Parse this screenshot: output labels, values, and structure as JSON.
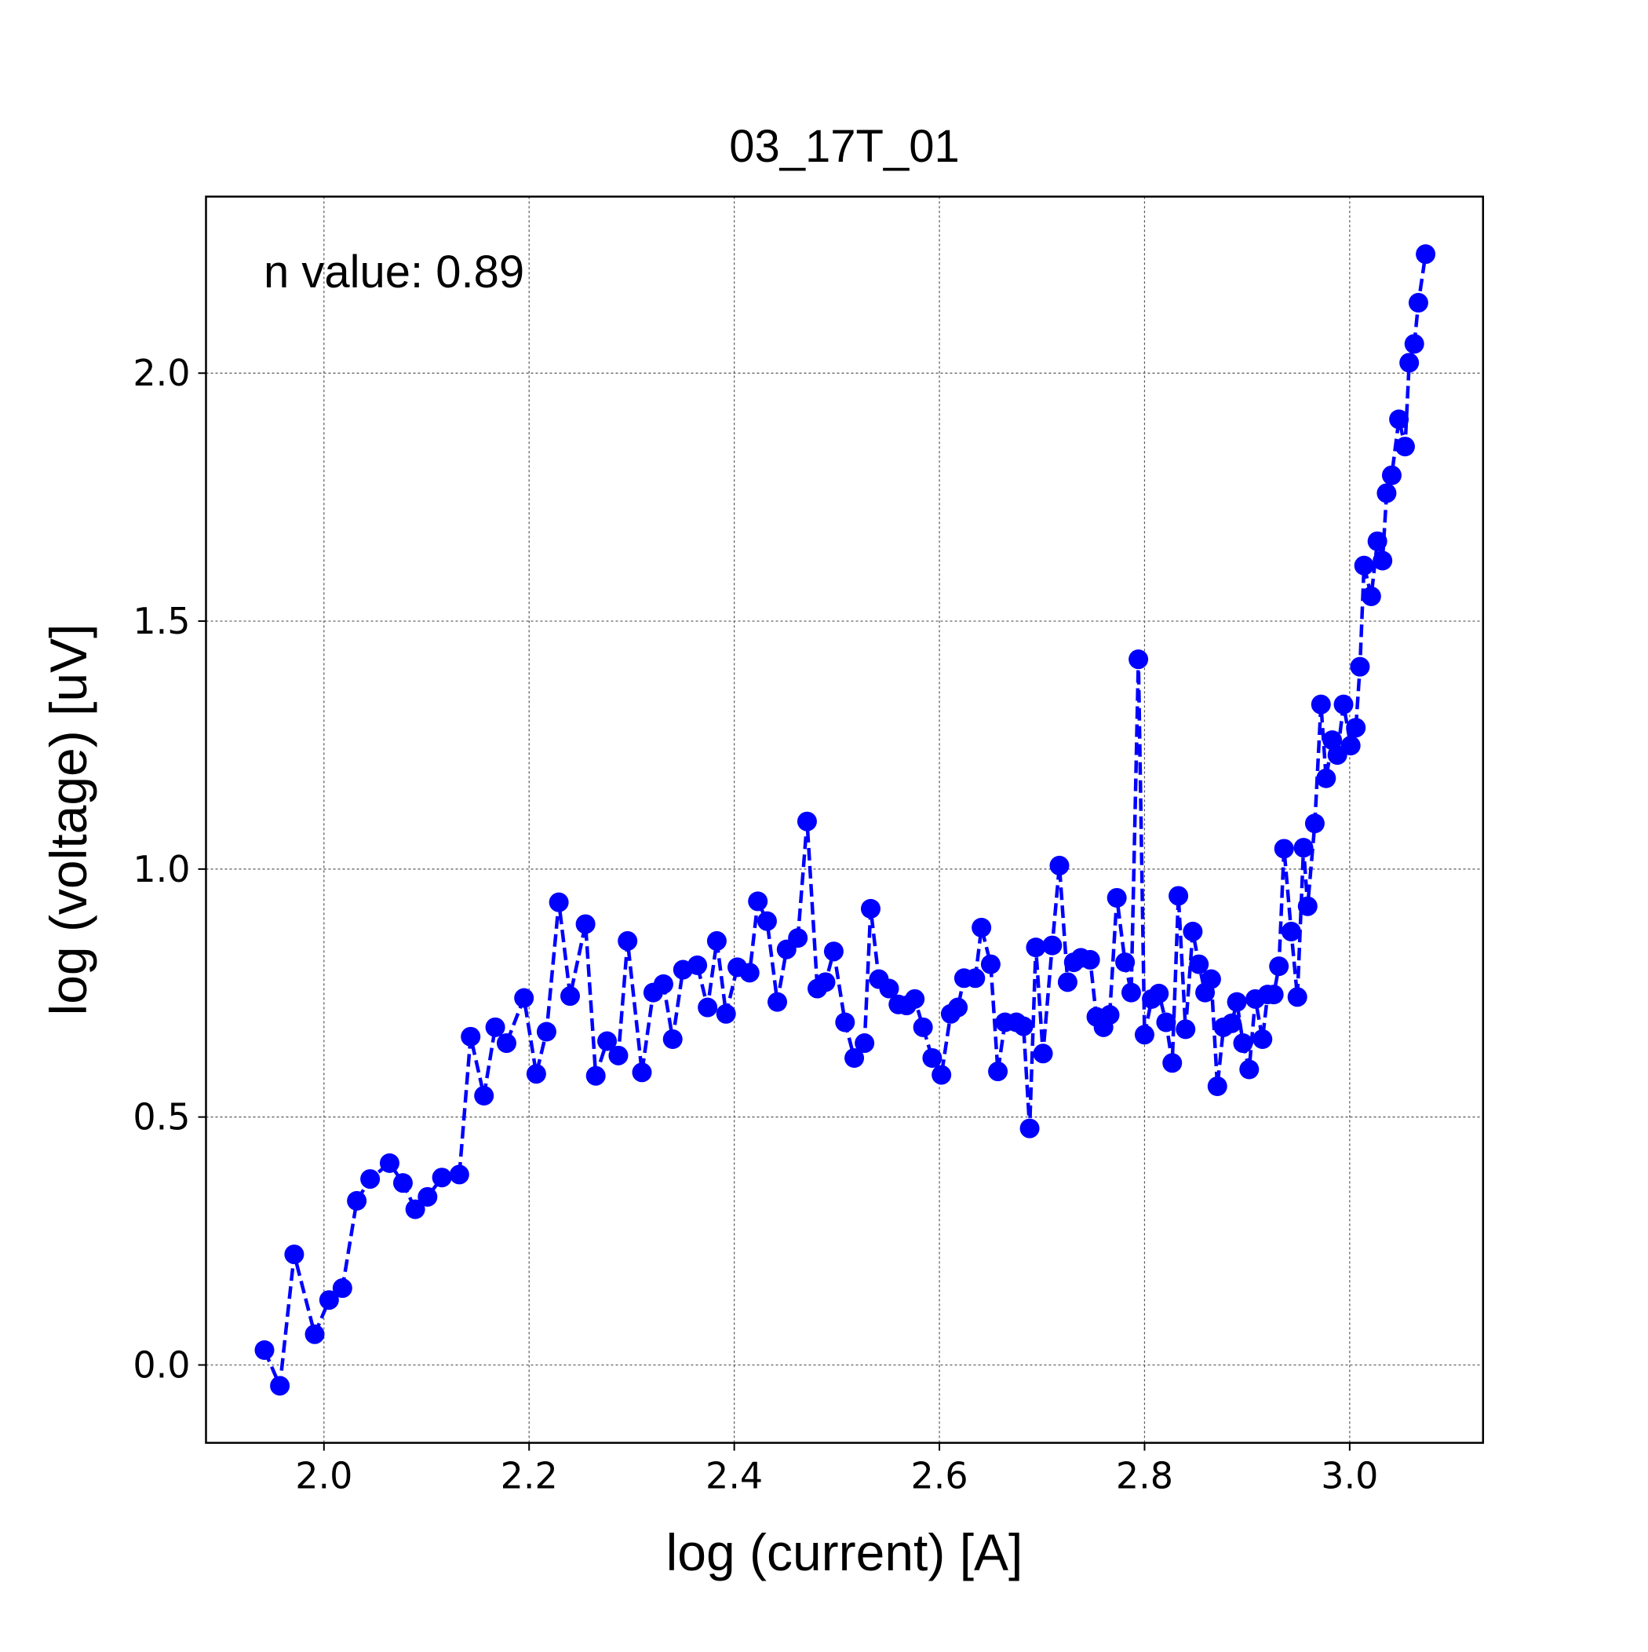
{
  "chart_data": {
    "type": "line",
    "title": "03_17T_01",
    "x_label": "log (current) [A]",
    "y_label": "log (voltage) [uV]",
    "annotation": "n value: 0.89",
    "xlim": [
      1.885,
      3.13
    ],
    "ylim": [
      -0.157,
      2.356
    ],
    "xticks": [
      {
        "value": 2.0,
        "label": "2.0"
      },
      2.2,
      2.4,
      2.6,
      2.8,
      {
        "value": 3.0,
        "label": "3.0"
      }
    ],
    "yticks": [
      {
        "value": 0.0,
        "label": "0.0"
      },
      0.5,
      {
        "value": 1.0,
        "label": "1.0"
      },
      1.5,
      {
        "value": 2.0,
        "label": "2.0"
      }
    ],
    "grid": true,
    "line_style": "dashed",
    "marker": "circle",
    "series": [
      {
        "color": "#0000ff",
        "x": [
          1.942,
          1.957,
          1.971,
          1.991,
          2.005,
          2.018,
          2.032,
          2.045,
          2.064,
          2.077,
          2.089,
          2.101,
          2.115,
          2.132,
          2.143,
          2.156,
          2.167,
          2.178,
          2.195,
          2.207,
          2.217,
          2.229,
          2.24,
          2.255,
          2.265,
          2.276,
          2.287,
          2.296,
          2.31,
          2.321,
          2.331,
          2.34,
          2.35,
          2.364,
          2.374,
          2.383,
          2.392,
          2.403,
          2.415,
          2.423,
          2.432,
          2.442,
          2.451,
          2.462,
          2.471,
          2.481,
          2.489,
          2.497,
          2.508,
          2.517,
          2.527,
          2.533,
          2.541,
          2.551,
          2.56,
          2.568,
          2.576,
          2.584,
          2.593,
          2.602,
          2.611,
          2.618,
          2.624,
          2.635,
          2.641,
          2.65,
          2.657,
          2.664,
          2.675,
          2.682,
          2.688,
          2.694,
          2.701,
          2.71,
          2.717,
          2.725,
          2.731,
          2.738,
          2.747,
          2.753,
          2.76,
          2.766,
          2.773,
          2.781,
          2.787,
          2.794,
          2.8,
          2.807,
          2.814,
          2.821,
          2.827,
          2.833,
          2.84,
          2.847,
          2.853,
          2.859,
          2.865,
          2.871,
          2.877,
          2.885,
          2.89,
          2.896,
          2.902,
          2.908,
          2.915,
          2.92,
          2.926,
          2.931,
          2.936,
          2.943,
          2.949,
          2.955,
          2.959,
          2.966,
          2.972,
          2.977,
          2.983,
          2.988,
          2.994,
          3.001,
          3.006,
          3.01,
          3.014,
          3.021,
          3.027,
          3.032,
          3.036,
          3.041,
          3.048,
          3.054,
          3.058,
          3.063,
          3.067,
          3.074
        ],
        "values": [
          0.03,
          -0.042,
          0.223,
          0.062,
          0.131,
          0.155,
          0.331,
          0.375,
          0.407,
          0.367,
          0.314,
          0.339,
          0.378,
          0.384,
          0.662,
          0.543,
          0.681,
          0.649,
          0.74,
          0.587,
          0.672,
          0.933,
          0.744,
          0.889,
          0.583,
          0.653,
          0.624,
          0.855,
          0.59,
          0.751,
          0.768,
          0.657,
          0.797,
          0.806,
          0.721,
          0.855,
          0.708,
          0.802,
          0.791,
          0.935,
          0.895,
          0.732,
          0.838,
          0.861,
          1.096,
          0.759,
          0.772,
          0.834,
          0.691,
          0.619,
          0.649,
          0.92,
          0.778,
          0.759,
          0.727,
          0.725,
          0.738,
          0.681,
          0.619,
          0.585,
          0.708,
          0.721,
          0.78,
          0.78,
          0.882,
          0.808,
          0.592,
          0.691,
          0.691,
          0.683,
          0.477,
          0.842,
          0.628,
          0.846,
          1.007,
          0.772,
          0.812,
          0.821,
          0.817,
          0.702,
          0.681,
          0.706,
          0.942,
          0.812,
          0.751,
          1.423,
          0.666,
          0.738,
          0.749,
          0.691,
          0.609,
          0.946,
          0.677,
          0.874,
          0.808,
          0.751,
          0.778,
          0.562,
          0.681,
          0.689,
          0.732,
          0.649,
          0.596,
          0.738,
          0.657,
          0.747,
          0.747,
          0.804,
          1.041,
          0.874,
          0.742,
          1.043,
          0.925,
          1.092,
          1.332,
          1.183,
          1.26,
          1.23,
          1.332,
          1.249,
          1.285,
          1.408,
          1.612,
          1.55,
          1.661,
          1.622,
          1.758,
          1.794,
          1.907,
          1.852,
          2.021,
          2.059,
          2.142,
          2.24
        ]
      }
    ]
  }
}
